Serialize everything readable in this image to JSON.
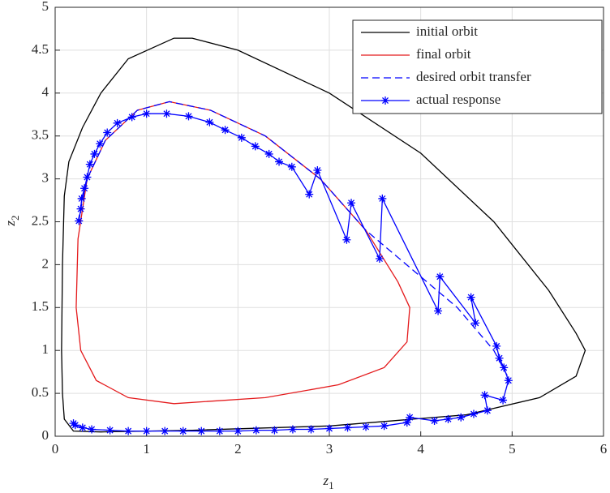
{
  "chart_data": {
    "type": "line",
    "xlabel": "z",
    "xlabel_subscript": "1",
    "ylabel": "z",
    "ylabel_subscript": "2",
    "xlim": [
      0,
      6
    ],
    "ylim": [
      0,
      5
    ],
    "xticks": [
      0,
      1,
      2,
      3,
      4,
      5,
      6
    ],
    "yticks": [
      0,
      0.5,
      1,
      1.5,
      2,
      2.5,
      3,
      3.5,
      4,
      4.5,
      5
    ],
    "grid": true,
    "legend": "top-right",
    "series": [
      {
        "name": "initial orbit",
        "color": "#000000",
        "style": "solid",
        "marker": "none",
        "x": [
          0.08,
          0.07,
          0.08,
          0.1,
          0.15,
          0.3,
          0.5,
          0.8,
          1.3,
          1.5,
          2,
          3,
          4,
          4.8,
          5.4,
          5.7,
          5.8,
          5.7,
          5.3,
          4.5,
          3,
          1.5,
          0.5,
          0.2,
          0.1,
          0.08
        ],
        "values": [
          0.5,
          1,
          2,
          2.8,
          3.2,
          3.6,
          4.0,
          4.4,
          4.64,
          4.64,
          4.5,
          4.0,
          3.3,
          2.5,
          1.7,
          1.2,
          1.0,
          0.7,
          0.45,
          0.25,
          0.12,
          0.07,
          0.05,
          0.06,
          0.2,
          0.5
        ]
      },
      {
        "name": "final orbit",
        "color": "#e41a1c",
        "style": "solid",
        "marker": "none",
        "x": [
          0.23,
          0.25,
          0.35,
          0.55,
          0.9,
          1.25,
          1.7,
          2.3,
          2.9,
          3.4,
          3.75,
          3.88,
          3.85,
          3.6,
          3.1,
          2.3,
          1.3,
          0.8,
          0.45,
          0.28,
          0.23
        ],
        "values": [
          1.5,
          2.3,
          3.0,
          3.45,
          3.8,
          3.9,
          3.8,
          3.5,
          3.0,
          2.4,
          1.8,
          1.5,
          1.1,
          0.8,
          0.6,
          0.45,
          0.38,
          0.45,
          0.65,
          1.0,
          1.5
        ]
      },
      {
        "name": "desired orbit transfer",
        "color": "#0000ff",
        "style": "dashed",
        "marker": "none",
        "x": [
          0.25,
          0.35,
          0.55,
          0.9,
          1.25,
          1.7,
          2.3,
          2.9,
          3.4,
          3.9,
          4.4,
          4.8,
          4.95
        ],
        "values": [
          2.5,
          3.0,
          3.45,
          3.8,
          3.9,
          3.8,
          3.5,
          3.0,
          2.4,
          1.95,
          1.5,
          1.0,
          0.7
        ]
      },
      {
        "name": "actual response",
        "color": "#0000ff",
        "style": "solid",
        "marker": "asterisk",
        "x": [
          0.26,
          0.28,
          0.29,
          0.32,
          0.35,
          0.38,
          0.43,
          0.49,
          0.57,
          0.68,
          0.84,
          1.0,
          1.22,
          1.46,
          1.69,
          1.86,
          2.04,
          2.19,
          2.34,
          2.45,
          2.59,
          2.78,
          2.87,
          3.19,
          3.24,
          3.55,
          3.58,
          4.19,
          4.21,
          4.6,
          4.55,
          4.83,
          4.86,
          4.91,
          4.96,
          4.9,
          4.7,
          4.73,
          4.58,
          4.44,
          4.3,
          4.15,
          3.88,
          3.85,
          3.6,
          3.4,
          3.2,
          3.0,
          2.8,
          2.6,
          2.4,
          2.2,
          2.0,
          1.8,
          1.6,
          1.4,
          1.2,
          1.0,
          0.8,
          0.6,
          0.4,
          0.3,
          0.22,
          0.2
        ],
        "values": [
          2.51,
          2.65,
          2.77,
          2.89,
          3.02,
          3.17,
          3.29,
          3.41,
          3.54,
          3.65,
          3.72,
          3.76,
          3.76,
          3.73,
          3.66,
          3.57,
          3.48,
          3.38,
          3.29,
          3.2,
          3.14,
          2.82,
          3.1,
          2.29,
          2.72,
          2.07,
          2.77,
          1.46,
          1.86,
          1.32,
          1.62,
          1.05,
          0.91,
          0.8,
          0.65,
          0.42,
          0.48,
          0.3,
          0.26,
          0.22,
          0.2,
          0.18,
          0.22,
          0.16,
          0.12,
          0.11,
          0.1,
          0.09,
          0.08,
          0.08,
          0.07,
          0.07,
          0.06,
          0.06,
          0.06,
          0.06,
          0.06,
          0.06,
          0.06,
          0.07,
          0.08,
          0.1,
          0.13,
          0.15
        ]
      }
    ]
  }
}
